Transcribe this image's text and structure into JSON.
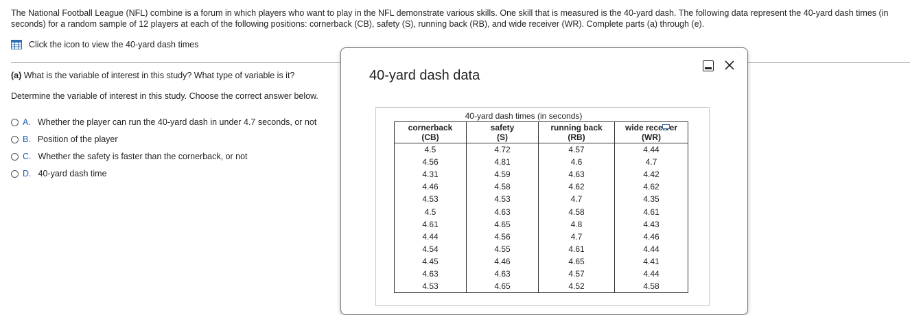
{
  "intro": "The National Football League (NFL) combine is a forum in which players who want to play in the NFL demonstrate various skills. One skill that is measured is the 40-yard dash. The following data represent the 40-yard dash times (in seconds) for a random sample of 12 players at each of the following positions: cornerback (CB), safety (S), running back (RB), and wide receiver (WR). Complete parts (a) through (e).",
  "icon_link": "Click the icon to view the 40-yard dash times",
  "part_a": {
    "label": "(a)",
    "question": " What is the variable of interest in this study? What type of variable is it?",
    "instruction": "Determine the variable of interest in this study. Choose the correct answer below.",
    "options": [
      {
        "letter": "A.",
        "text": "Whether the player can run the 40-yard dash in under 4.7 seconds, or not"
      },
      {
        "letter": "B.",
        "text": "Position of the player"
      },
      {
        "letter": "C.",
        "text": "Whether the safety is faster than the cornerback, or not"
      },
      {
        "letter": "D.",
        "text": "40-yard dash time"
      }
    ]
  },
  "dialog": {
    "title": "40-yard dash data",
    "caption": "40-yard dash times (in seconds)",
    "headers": [
      {
        "line1": "cornerback",
        "line2": "(CB)"
      },
      {
        "line1": "safety",
        "line2": "(S)"
      },
      {
        "line1": "running back",
        "line2": "(RB)"
      },
      {
        "line1": "wide receiver",
        "line2": "(WR)"
      }
    ],
    "rows": [
      [
        "4.5",
        "4.72",
        "4.57",
        "4.44"
      ],
      [
        "4.56",
        "4.81",
        "4.6",
        "4.7"
      ],
      [
        "4.31",
        "4.59",
        "4.63",
        "4.42"
      ],
      [
        "4.46",
        "4.58",
        "4.62",
        "4.62"
      ],
      [
        "4.53",
        "4.53",
        "4.7",
        "4.35"
      ],
      [
        "4.5",
        "4.63",
        "4.58",
        "4.61"
      ],
      [
        "4.61",
        "4.65",
        "4.8",
        "4.43"
      ],
      [
        "4.44",
        "4.56",
        "4.7",
        "4.46"
      ],
      [
        "4.54",
        "4.55",
        "4.61",
        "4.44"
      ],
      [
        "4.45",
        "4.46",
        "4.65",
        "4.41"
      ],
      [
        "4.63",
        "4.63",
        "4.57",
        "4.44"
      ],
      [
        "4.53",
        "4.65",
        "4.52",
        "4.58"
      ]
    ]
  },
  "colors": {
    "accent": "#1a5fb4",
    "icon_blue": "#2e6db4"
  }
}
